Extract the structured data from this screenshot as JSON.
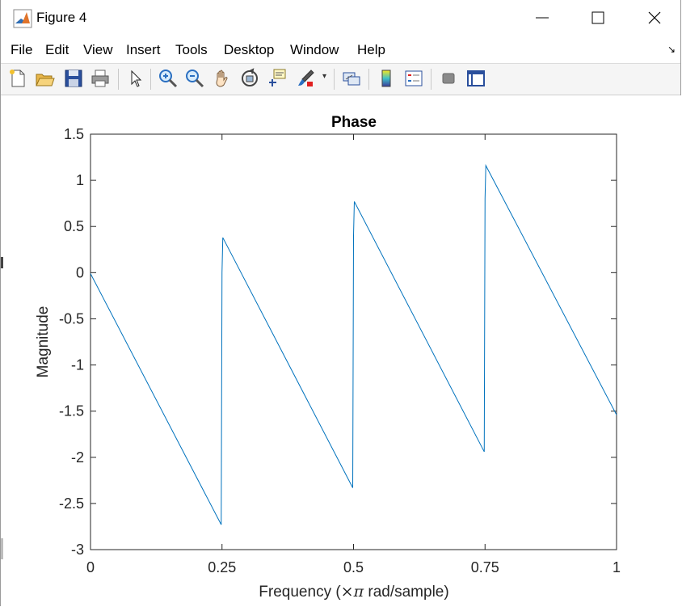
{
  "window": {
    "title": "Figure 4",
    "minimize_icon": "minimize-icon",
    "maximize_icon": "maximize-icon",
    "close_icon": "close-icon"
  },
  "menu": {
    "items": [
      "File",
      "Edit",
      "View",
      "Insert",
      "Tools",
      "Desktop",
      "Window",
      "Help"
    ]
  },
  "toolbar": {
    "buttons": [
      "new-figure-icon",
      "open-file-icon",
      "save-icon",
      "print-icon",
      "edit-plot-pointer-icon",
      "zoom-in-icon",
      "zoom-out-icon",
      "pan-hand-icon",
      "rotate-3d-icon",
      "data-cursor-icon",
      "brush-icon",
      "brush-dropdown-icon",
      "link-plot-icon",
      "insert-colorbar-icon",
      "insert-legend-icon",
      "hide-plot-tools-icon",
      "show-plot-tools-icon"
    ]
  },
  "chart_data": {
    "type": "line",
    "title": "Phase",
    "xlabel": "Frequency (×π rad/sample)",
    "xlabel_prefix": "Frequency (",
    "xlabel_symbol": "×π",
    "xlabel_suffix": " rad/sample)",
    "ylabel": "Magnitude",
    "xlim": [
      0,
      1
    ],
    "ylim": [
      -3,
      1.5
    ],
    "xticks": [
      0,
      0.25,
      0.5,
      0.75,
      1
    ],
    "xtick_labels": [
      "0",
      "0.25",
      "0.5",
      "0.75",
      "1"
    ],
    "yticks": [
      -3,
      -2.5,
      -2,
      -1.5,
      -1,
      -0.5,
      0,
      0.5,
      1,
      1.5
    ],
    "ytick_labels": [
      "-3",
      "-2.5",
      "-2",
      "-1.5",
      "-1",
      "-0.5",
      "0",
      "0.5",
      "1",
      "1.5"
    ],
    "grid": false,
    "line_color": "#0072bd",
    "series": [
      {
        "x": [
          0,
          0.2485,
          0.25,
          0.2515,
          0.4985,
          0.5,
          0.5015,
          0.7485,
          0.75,
          0.7515,
          1.0
        ],
        "y": [
          -0.01,
          -2.73,
          0.0,
          0.38,
          -2.33,
          0.4,
          0.77,
          -1.94,
          0.8,
          1.16,
          -1.54
        ]
      }
    ]
  }
}
